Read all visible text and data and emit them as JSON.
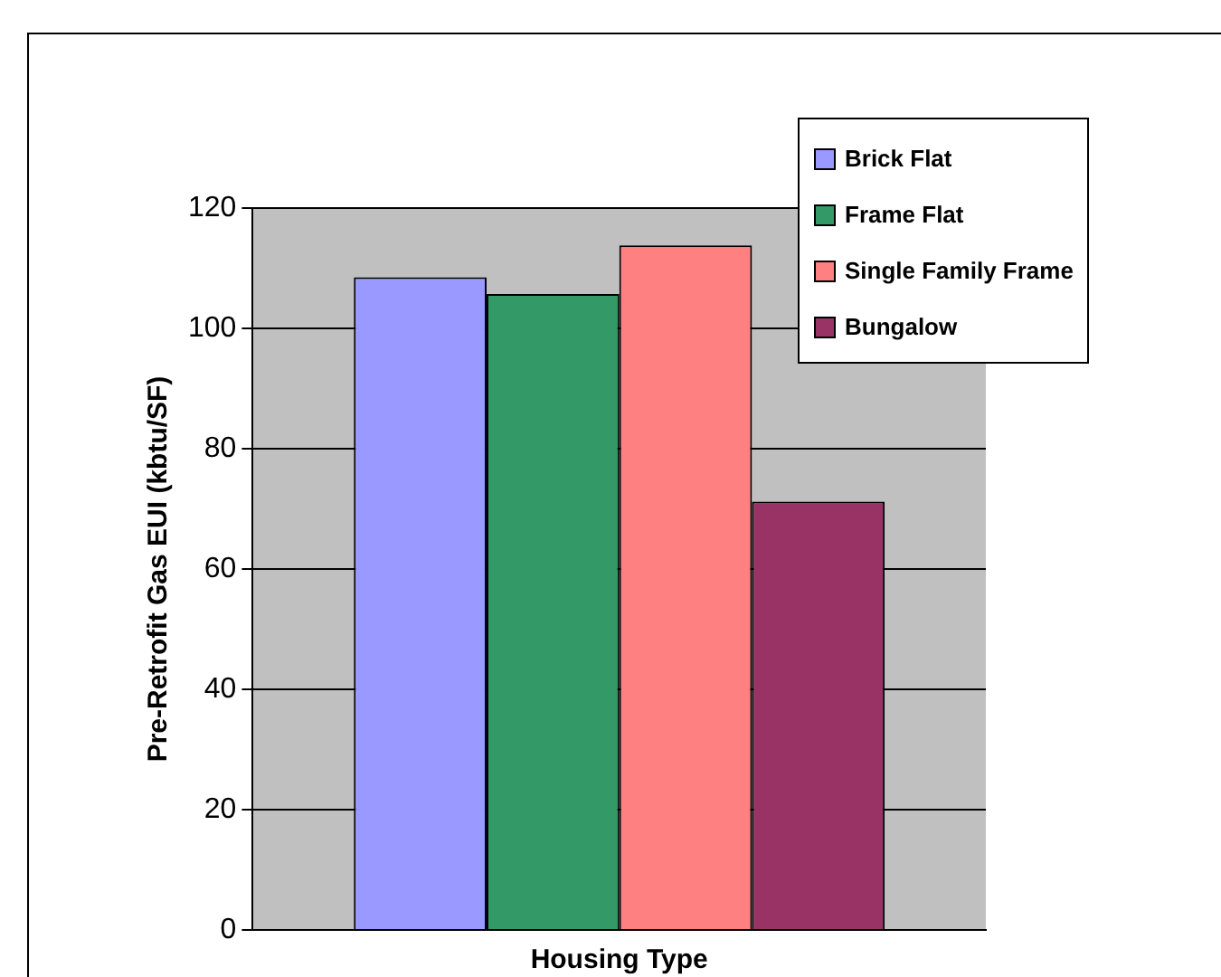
{
  "chart_data": {
    "type": "bar",
    "xlabel": "Housing Type",
    "ylabel": "Pre-Retrofit Gas EUI (kbtu/SF)",
    "categories": [
      null
    ],
    "series": [
      {
        "name": "Brick Flat",
        "color": "#9999ff",
        "values": [
          108.5
        ]
      },
      {
        "name": "Frame Flat",
        "color": "#339966",
        "values": [
          105.7
        ]
      },
      {
        "name": "Single Family Frame",
        "color": "#ff8080",
        "values": [
          113.8
        ]
      },
      {
        "name": "Bungalow",
        "color": "#993366",
        "values": [
          71.2
        ]
      }
    ],
    "ylim": [
      0,
      120
    ],
    "yticks": [
      0,
      20,
      40,
      60,
      80,
      100,
      120
    ],
    "grid": "y",
    "legend": "top right"
  }
}
